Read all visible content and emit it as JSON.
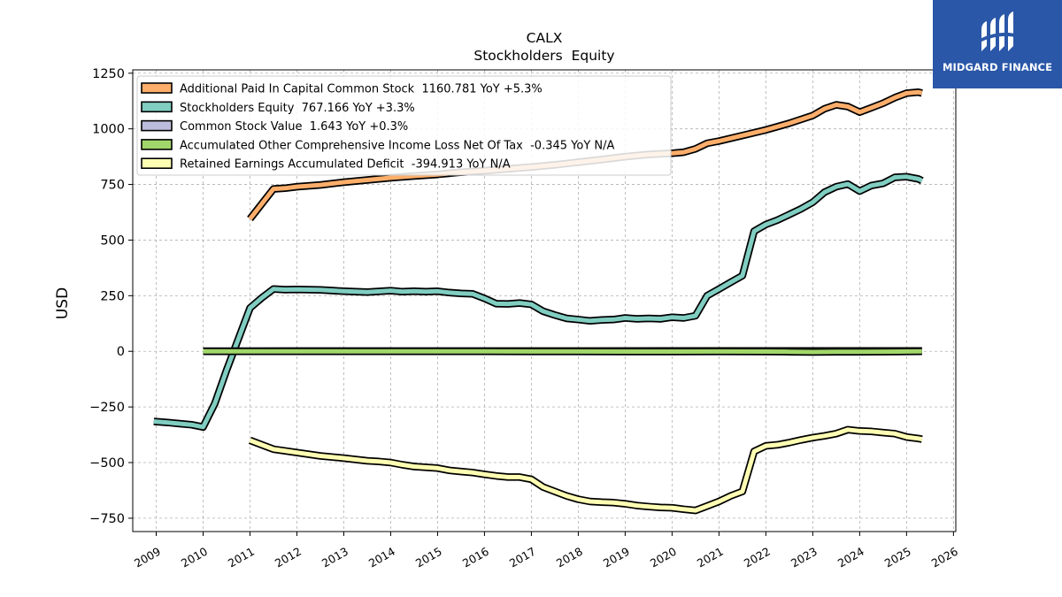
{
  "logo": {
    "text": "MIDGARD FINANCE",
    "icon": "midgard-logo-icon",
    "background": "#2a57a8"
  },
  "chart_data": {
    "type": "line",
    "title": "CALX",
    "subtitle": "Stockholders  Equity",
    "xlabel": "",
    "ylabel": "USD",
    "xlim": [
      2008.5,
      2026.05
    ],
    "ylim": [
      -810,
      1265
    ],
    "yticks": [
      -750,
      -500,
      -250,
      0,
      250,
      500,
      750,
      1000,
      1250
    ],
    "ytick_labels": [
      "−750",
      "−500",
      "−250",
      "0",
      "250",
      "500",
      "750",
      "1000",
      "1250"
    ],
    "xticks": [
      2009,
      2010,
      2011,
      2012,
      2013,
      2014,
      2015,
      2016,
      2017,
      2018,
      2019,
      2020,
      2021,
      2022,
      2023,
      2024,
      2025,
      2026
    ],
    "xtick_labels": [
      "2009",
      "2010",
      "2011",
      "2012",
      "2013",
      "2014",
      "2015",
      "2016",
      "2017",
      "2018",
      "2019",
      "2020",
      "2021",
      "2022",
      "2023",
      "2024",
      "2025",
      "2026"
    ],
    "grid": true,
    "legend_position": "top-left",
    "series": [
      {
        "name": "Additional Paid In Capital Common Stock",
        "legend_label": "Additional Paid In Capital Common Stock  1160.781 YoY +5.3%",
        "color": "#fdae6b",
        "points": [
          [
            2011.0,
            595
          ],
          [
            2011.5,
            730
          ],
          [
            2011.75,
            733
          ],
          [
            2012.0,
            740
          ],
          [
            2012.5,
            748
          ],
          [
            2013.0,
            760
          ],
          [
            2013.5,
            770
          ],
          [
            2014.0,
            780
          ],
          [
            2014.5,
            788
          ],
          [
            2015.0,
            795
          ],
          [
            2015.5,
            805
          ],
          [
            2016.0,
            812
          ],
          [
            2016.5,
            820
          ],
          [
            2017.0,
            828
          ],
          [
            2017.5,
            838
          ],
          [
            2018.0,
            850
          ],
          [
            2018.5,
            862
          ],
          [
            2019.0,
            875
          ],
          [
            2019.5,
            885
          ],
          [
            2020.0,
            890
          ],
          [
            2020.25,
            895
          ],
          [
            2020.5,
            910
          ],
          [
            2020.75,
            935
          ],
          [
            2021.0,
            945
          ],
          [
            2021.5,
            970
          ],
          [
            2022.0,
            995
          ],
          [
            2022.5,
            1025
          ],
          [
            2023.0,
            1060
          ],
          [
            2023.25,
            1090
          ],
          [
            2023.5,
            1108
          ],
          [
            2023.75,
            1100
          ],
          [
            2024.0,
            1075
          ],
          [
            2024.25,
            1095
          ],
          [
            2024.5,
            1115
          ],
          [
            2024.75,
            1140
          ],
          [
            2025.0,
            1160
          ],
          [
            2025.25,
            1165
          ],
          [
            2025.33,
            1161
          ]
        ]
      },
      {
        "name": "Stockholders Equity",
        "legend_label": "Stockholders Equity  767.166 YoY +3.3%",
        "color": "#80cdc1",
        "points": [
          [
            2008.95,
            -315
          ],
          [
            2009.25,
            -320
          ],
          [
            2009.5,
            -325
          ],
          [
            2009.75,
            -330
          ],
          [
            2010.0,
            -340
          ],
          [
            2010.25,
            -235
          ],
          [
            2010.5,
            -85
          ],
          [
            2011.0,
            195
          ],
          [
            2011.25,
            240
          ],
          [
            2011.5,
            280
          ],
          [
            2011.75,
            277
          ],
          [
            2012.0,
            278
          ],
          [
            2012.5,
            276
          ],
          [
            2013.0,
            270
          ],
          [
            2013.5,
            266
          ],
          [
            2014.0,
            273
          ],
          [
            2014.25,
            268
          ],
          [
            2014.5,
            270
          ],
          [
            2014.75,
            268
          ],
          [
            2015.0,
            270
          ],
          [
            2015.25,
            264
          ],
          [
            2015.5,
            260
          ],
          [
            2015.75,
            258
          ],
          [
            2016.0,
            238
          ],
          [
            2016.25,
            214
          ],
          [
            2016.5,
            213
          ],
          [
            2016.75,
            217
          ],
          [
            2017.0,
            211
          ],
          [
            2017.25,
            180
          ],
          [
            2017.5,
            163
          ],
          [
            2017.75,
            148
          ],
          [
            2018.0,
            143
          ],
          [
            2018.25,
            137
          ],
          [
            2018.5,
            141
          ],
          [
            2018.75,
            143
          ],
          [
            2019.0,
            150
          ],
          [
            2019.25,
            146
          ],
          [
            2019.5,
            148
          ],
          [
            2019.75,
            146
          ],
          [
            2020.0,
            153
          ],
          [
            2020.25,
            150
          ],
          [
            2020.5,
            160
          ],
          [
            2020.75,
            250
          ],
          [
            2021.0,
            280
          ],
          [
            2021.25,
            310
          ],
          [
            2021.5,
            340
          ],
          [
            2021.75,
            540
          ],
          [
            2022.0,
            570
          ],
          [
            2022.25,
            590
          ],
          [
            2022.5,
            615
          ],
          [
            2022.75,
            640
          ],
          [
            2023.0,
            670
          ],
          [
            2023.25,
            715
          ],
          [
            2023.5,
            740
          ],
          [
            2023.75,
            752
          ],
          [
            2024.0,
            720
          ],
          [
            2024.25,
            745
          ],
          [
            2024.5,
            755
          ],
          [
            2024.75,
            782
          ],
          [
            2025.0,
            785
          ],
          [
            2025.25,
            775
          ],
          [
            2025.33,
            767
          ]
        ]
      },
      {
        "name": "Common Stock Value",
        "legend_label": "Common Stock Value  1.643 YoY +0.3%",
        "color": "#bcbddc",
        "points": [
          [
            2010.0,
            1
          ],
          [
            2012.0,
            1.2
          ],
          [
            2014.0,
            1.3
          ],
          [
            2016.0,
            1.4
          ],
          [
            2018.0,
            1.5
          ],
          [
            2020.0,
            1.55
          ],
          [
            2022.0,
            1.6
          ],
          [
            2024.0,
            1.62
          ],
          [
            2025.33,
            1.643
          ]
        ]
      },
      {
        "name": "Accumulated Other Comprehensive Income Loss Net Of Tax",
        "legend_label": "Accumulated Other Comprehensive Income Loss Net Of Tax  -0.345 YoY N/A",
        "color": "#a1d76a",
        "points": [
          [
            2010.0,
            0
          ],
          [
            2012.0,
            0
          ],
          [
            2014.0,
            0
          ],
          [
            2016.0,
            0
          ],
          [
            2017.0,
            -0.5
          ],
          [
            2018.0,
            -0.5
          ],
          [
            2019.0,
            -1
          ],
          [
            2020.0,
            -1
          ],
          [
            2021.0,
            -0.5
          ],
          [
            2022.0,
            -1
          ],
          [
            2022.5,
            -2
          ],
          [
            2023.0,
            -3
          ],
          [
            2023.5,
            -2
          ],
          [
            2024.0,
            -2
          ],
          [
            2024.5,
            -1.5
          ],
          [
            2025.0,
            -0.5
          ],
          [
            2025.33,
            -0.345
          ]
        ]
      },
      {
        "name": "Retained Earnings Accumulated Deficit",
        "legend_label": "Retained Earnings Accumulated Deficit  -394.913 YoY N/A",
        "color": "#ffffb3",
        "points": [
          [
            2011.0,
            -400
          ],
          [
            2011.25,
            -420
          ],
          [
            2011.5,
            -440
          ],
          [
            2012.0,
            -455
          ],
          [
            2012.5,
            -470
          ],
          [
            2013.0,
            -480
          ],
          [
            2013.5,
            -492
          ],
          [
            2013.75,
            -495
          ],
          [
            2014.0,
            -500
          ],
          [
            2014.25,
            -510
          ],
          [
            2014.5,
            -518
          ],
          [
            2015.0,
            -525
          ],
          [
            2015.25,
            -535
          ],
          [
            2015.5,
            -540
          ],
          [
            2015.75,
            -545
          ],
          [
            2016.0,
            -553
          ],
          [
            2016.25,
            -560
          ],
          [
            2016.5,
            -565
          ],
          [
            2016.75,
            -565
          ],
          [
            2017.0,
            -575
          ],
          [
            2017.25,
            -610
          ],
          [
            2017.5,
            -630
          ],
          [
            2017.75,
            -650
          ],
          [
            2018.0,
            -665
          ],
          [
            2018.25,
            -675
          ],
          [
            2018.5,
            -678
          ],
          [
            2018.75,
            -680
          ],
          [
            2019.0,
            -685
          ],
          [
            2019.25,
            -693
          ],
          [
            2019.5,
            -698
          ],
          [
            2019.75,
            -702
          ],
          [
            2020.0,
            -703
          ],
          [
            2020.25,
            -710
          ],
          [
            2020.5,
            -715
          ],
          [
            2020.75,
            -695
          ],
          [
            2021.0,
            -675
          ],
          [
            2021.25,
            -650
          ],
          [
            2021.5,
            -630
          ],
          [
            2021.75,
            -450
          ],
          [
            2022.0,
            -425
          ],
          [
            2022.25,
            -420
          ],
          [
            2022.5,
            -410
          ],
          [
            2022.75,
            -398
          ],
          [
            2023.0,
            -388
          ],
          [
            2023.25,
            -380
          ],
          [
            2023.5,
            -370
          ],
          [
            2023.75,
            -352
          ],
          [
            2024.0,
            -358
          ],
          [
            2024.25,
            -360
          ],
          [
            2024.5,
            -365
          ],
          [
            2024.75,
            -370
          ],
          [
            2025.0,
            -385
          ],
          [
            2025.25,
            -392
          ],
          [
            2025.33,
            -395
          ]
        ]
      }
    ]
  }
}
